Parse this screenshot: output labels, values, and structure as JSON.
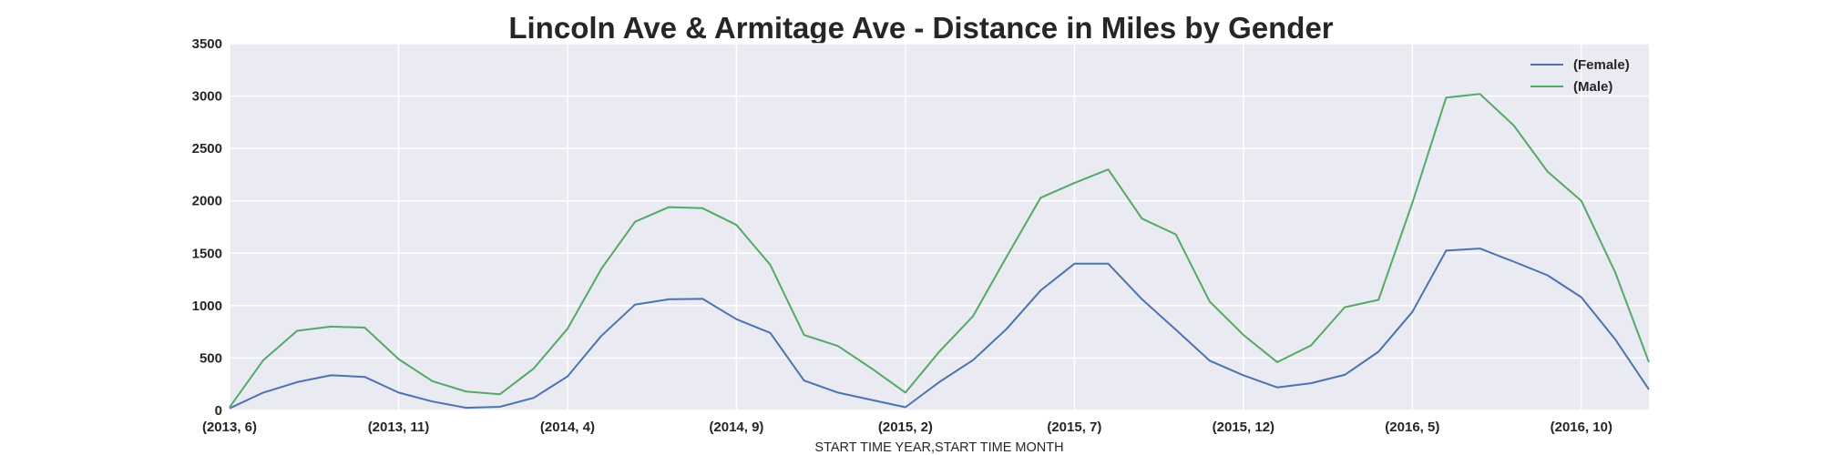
{
  "chart_data": {
    "type": "line",
    "title": "Lincoln Ave & Armitage Ave - Distance in Miles by Gender",
    "xlabel": "START TIME YEAR,START TIME MONTH",
    "ylabel": "",
    "ylim": [
      0,
      3500
    ],
    "yticks": [
      0,
      500,
      1000,
      1500,
      2000,
      2500,
      3000,
      3500
    ],
    "x": [
      "(2013, 6)",
      "(2013, 7)",
      "(2013, 8)",
      "(2013, 9)",
      "(2013, 10)",
      "(2013, 11)",
      "(2013, 12)",
      "(2014, 1)",
      "(2014, 2)",
      "(2014, 3)",
      "(2014, 4)",
      "(2014, 5)",
      "(2014, 6)",
      "(2014, 7)",
      "(2014, 8)",
      "(2014, 9)",
      "(2014, 10)",
      "(2014, 11)",
      "(2014, 12)",
      "(2015, 1)",
      "(2015, 2)",
      "(2015, 3)",
      "(2015, 4)",
      "(2015, 5)",
      "(2015, 6)",
      "(2015, 7)",
      "(2015, 8)",
      "(2015, 9)",
      "(2015, 10)",
      "(2015, 11)",
      "(2015, 12)",
      "(2016, 1)",
      "(2016, 2)",
      "(2016, 3)",
      "(2016, 4)",
      "(2016, 5)",
      "(2016, 6)",
      "(2016, 7)",
      "(2016, 8)",
      "(2016, 9)",
      "(2016, 10)",
      "(2016, 11)",
      "(2016, 12)"
    ],
    "xticks": [
      "(2013, 6)",
      "(2013, 11)",
      "(2014, 4)",
      "(2014, 9)",
      "(2015, 2)",
      "(2015, 7)",
      "(2015, 12)",
      "(2016, 5)",
      "(2016, 10)"
    ],
    "grid": true,
    "legend_position": "top-right",
    "series": [
      {
        "name": "(Female)",
        "color": "#4c72b0",
        "values": [
          20,
          170,
          270,
          335,
          320,
          170,
          85,
          25,
          35,
          120,
          325,
          710,
          1010,
          1060,
          1065,
          870,
          740,
          285,
          170,
          100,
          30,
          270,
          480,
          780,
          1145,
          1400,
          1400,
          1060,
          770,
          475,
          335,
          220,
          260,
          340,
          560,
          940,
          1525,
          1545,
          1420,
          1290,
          1080,
          680,
          200
        ]
      },
      {
        "name": "(Male)",
        "color": "#55a868",
        "values": [
          30,
          480,
          760,
          800,
          790,
          490,
          280,
          180,
          155,
          400,
          780,
          1350,
          1800,
          1940,
          1930,
          1770,
          1390,
          720,
          615,
          400,
          170,
          560,
          900,
          1470,
          2030,
          2170,
          2300,
          1830,
          1680,
          1040,
          720,
          460,
          620,
          985,
          1055,
          1980,
          2985,
          3020,
          2720,
          2280,
          2000,
          1320,
          460
        ]
      }
    ]
  }
}
